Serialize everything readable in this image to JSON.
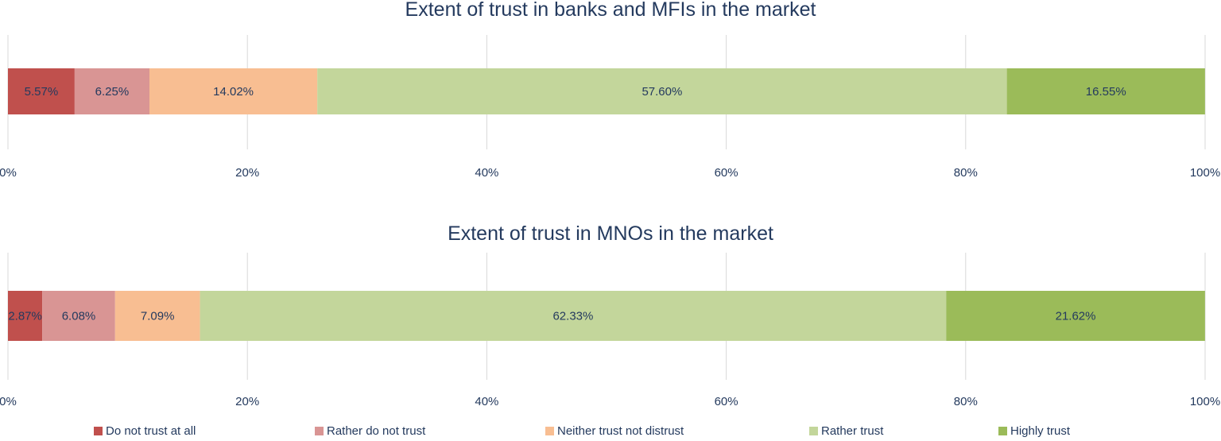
{
  "chart_data": [
    {
      "type": "bar",
      "orientation": "horizontal-stacked-100",
      "title": "Extent of trust in banks and MFIs in the market",
      "categories": [
        "Do not trust at all",
        "Rather do not trust",
        "Neither trust not distrust",
        "Rather trust",
        "Highly trust"
      ],
      "values": [
        5.57,
        6.25,
        14.02,
        57.6,
        16.55
      ],
      "data_labels": [
        "5.57%",
        "6.25%",
        "14.02%",
        "57.60%",
        "16.55%"
      ],
      "x_ticks": [
        "0%",
        "20%",
        "40%",
        "60%",
        "80%",
        "100%"
      ],
      "xlim": [
        0,
        100
      ],
      "grid": true
    },
    {
      "type": "bar",
      "orientation": "horizontal-stacked-100",
      "title": "Extent of trust in MNOs in the market",
      "categories": [
        "Do not trust at all",
        "Rather do not trust",
        "Neither trust not distrust",
        "Rather trust",
        "Highly trust"
      ],
      "values": [
        2.87,
        6.08,
        7.09,
        62.33,
        21.62
      ],
      "data_labels": [
        "2.87%",
        "6.08%",
        "7.09%",
        "62.33%",
        "21.62%"
      ],
      "x_ticks": [
        "0%",
        "20%",
        "40%",
        "60%",
        "80%",
        "100%"
      ],
      "xlim": [
        0,
        100
      ],
      "grid": true
    }
  ],
  "legend": {
    "placement": "bottom",
    "items": [
      {
        "label": "Do not trust at all",
        "color": "#c0504d"
      },
      {
        "label": "Rather do not trust",
        "color": "#d99594"
      },
      {
        "label": "Neither trust not distrust",
        "color": "#f8be92"
      },
      {
        "label": "Rather trust",
        "color": "#c3d69b"
      },
      {
        "label": "Highly trust",
        "color": "#9bbb59"
      }
    ]
  }
}
